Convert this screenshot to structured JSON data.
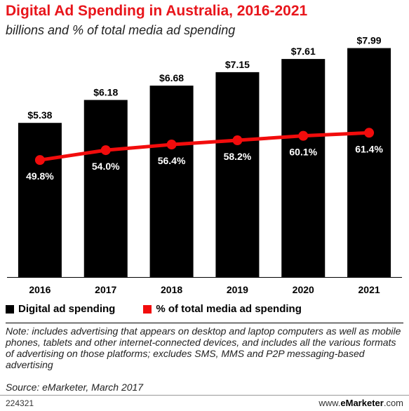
{
  "header": {
    "title": "Digital Ad Spending in Australia, 2016-2021",
    "subtitle": "billions and % of total media ad spending"
  },
  "chart_data": {
    "type": "bar",
    "categories": [
      "2016",
      "2017",
      "2018",
      "2019",
      "2020",
      "2021"
    ],
    "series": [
      {
        "name": "Digital ad spending",
        "type": "bar",
        "color": "#000000",
        "values": [
          5.38,
          6.18,
          6.68,
          7.15,
          7.61,
          7.99
        ],
        "labels": [
          "$5.38",
          "$6.18",
          "$6.68",
          "$7.15",
          "$7.61",
          "$7.99"
        ]
      },
      {
        "name": "% of total media ad spending",
        "type": "line",
        "color": "#f20c0c",
        "values": [
          49.8,
          54.0,
          56.4,
          58.2,
          60.1,
          61.4
        ],
        "labels": [
          "49.8%",
          "54.0%",
          "56.4%",
          "58.2%",
          "60.1%",
          "61.4%"
        ]
      }
    ],
    "ylim_bars": [
      0,
      8.2
    ],
    "ylim_line": [
      0,
      100
    ],
    "grid": false,
    "legend_placement": "bottom-left"
  },
  "legend": {
    "items": [
      {
        "label": "Digital ad spending",
        "color": "#000000"
      },
      {
        "label": "% of total media ad spending",
        "color": "#f20c0c"
      }
    ]
  },
  "footer": {
    "note": "Note: includes advertising that appears on desktop and laptop computers as well as mobile phones, tablets and other internet-connected devices, and includes all the various formats of advertising on those platforms; excludes SMS, MMS and P2P messaging-based advertising",
    "source": "Source: eMarketer, March 2017",
    "chart_id": "224321",
    "brand_prefix": "www.",
    "brand_name": "eMarketer",
    "brand_suffix": ".com"
  }
}
